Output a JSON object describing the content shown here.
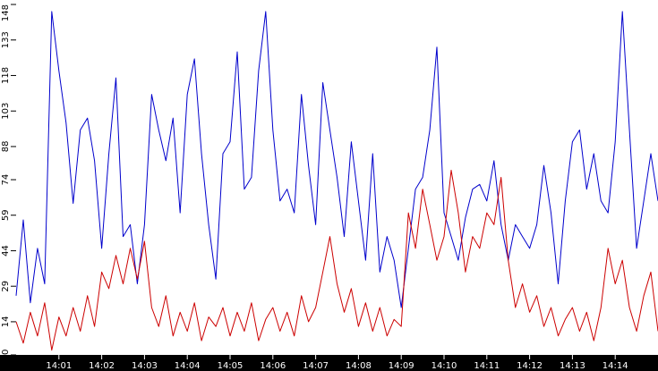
{
  "chart_data": {
    "type": "line",
    "title": "",
    "xlabel": "",
    "ylabel": "",
    "x_time_range": [
      "14:00:00",
      "14:15:00"
    ],
    "ylim": [
      0,
      148
    ],
    "yticks": [
      0,
      14,
      29,
      44,
      59,
      74,
      88,
      103,
      118,
      133,
      148
    ],
    "xticks": [
      "14:01",
      "14:02",
      "14:03",
      "14:04",
      "14:05",
      "14:06",
      "14:07",
      "14:08",
      "14:09",
      "14:10",
      "14:11",
      "14:12",
      "14:13",
      "14:14"
    ],
    "grid": false,
    "legend": "none",
    "series": [
      {
        "color": "#0000cc",
        "points": [
          [
            "14:00:00",
            25
          ],
          [
            "14:00:10",
            57
          ],
          [
            "14:00:20",
            22
          ],
          [
            "14:00:30",
            45
          ],
          [
            "14:00:40",
            30
          ],
          [
            "14:00:50",
            145
          ],
          [
            "14:01:00",
            120
          ],
          [
            "14:01:10",
            98
          ],
          [
            "14:01:20",
            64
          ],
          [
            "14:01:30",
            95
          ],
          [
            "14:01:40",
            100
          ],
          [
            "14:01:50",
            82
          ],
          [
            "14:02:00",
            45
          ],
          [
            "14:02:10",
            85
          ],
          [
            "14:02:20",
            117
          ],
          [
            "14:02:30",
            50
          ],
          [
            "14:02:40",
            55
          ],
          [
            "14:02:50",
            30
          ],
          [
            "14:03:00",
            55
          ],
          [
            "14:03:10",
            110
          ],
          [
            "14:03:20",
            95
          ],
          [
            "14:03:30",
            82
          ],
          [
            "14:03:40",
            100
          ],
          [
            "14:03:50",
            60
          ],
          [
            "14:04:00",
            110
          ],
          [
            "14:04:10",
            125
          ],
          [
            "14:04:20",
            85
          ],
          [
            "14:04:30",
            55
          ],
          [
            "14:04:40",
            32
          ],
          [
            "14:04:50",
            85
          ],
          [
            "14:05:00",
            90
          ],
          [
            "14:05:10",
            128
          ],
          [
            "14:05:20",
            70
          ],
          [
            "14:05:30",
            75
          ],
          [
            "14:05:40",
            120
          ],
          [
            "14:05:50",
            145
          ],
          [
            "14:06:00",
            95
          ],
          [
            "14:06:10",
            65
          ],
          [
            "14:06:20",
            70
          ],
          [
            "14:06:30",
            60
          ],
          [
            "14:06:40",
            110
          ],
          [
            "14:06:50",
            80
          ],
          [
            "14:07:00",
            55
          ],
          [
            "14:07:10",
            115
          ],
          [
            "14:07:20",
            95
          ],
          [
            "14:07:30",
            75
          ],
          [
            "14:07:40",
            50
          ],
          [
            "14:07:50",
            90
          ],
          [
            "14:08:00",
            65
          ],
          [
            "14:08:10",
            40
          ],
          [
            "14:08:20",
            85
          ],
          [
            "14:08:30",
            35
          ],
          [
            "14:08:40",
            50
          ],
          [
            "14:08:50",
            40
          ],
          [
            "14:09:00",
            20
          ],
          [
            "14:09:10",
            45
          ],
          [
            "14:09:20",
            70
          ],
          [
            "14:09:30",
            75
          ],
          [
            "14:09:40",
            95
          ],
          [
            "14:09:50",
            130
          ],
          [
            "14:10:00",
            60
          ],
          [
            "14:10:10",
            50
          ],
          [
            "14:10:20",
            40
          ],
          [
            "14:10:30",
            58
          ],
          [
            "14:10:40",
            70
          ],
          [
            "14:10:50",
            72
          ],
          [
            "14:11:00",
            65
          ],
          [
            "14:11:10",
            82
          ],
          [
            "14:11:20",
            55
          ],
          [
            "14:11:30",
            40
          ],
          [
            "14:11:40",
            55
          ],
          [
            "14:11:50",
            50
          ],
          [
            "14:12:00",
            45
          ],
          [
            "14:12:10",
            55
          ],
          [
            "14:12:20",
            80
          ],
          [
            "14:12:30",
            60
          ],
          [
            "14:12:40",
            30
          ],
          [
            "14:12:50",
            65
          ],
          [
            "14:13:00",
            90
          ],
          [
            "14:13:10",
            95
          ],
          [
            "14:13:20",
            70
          ],
          [
            "14:13:30",
            85
          ],
          [
            "14:13:40",
            65
          ],
          [
            "14:13:50",
            60
          ],
          [
            "14:14:00",
            90
          ],
          [
            "14:14:10",
            145
          ],
          [
            "14:14:20",
            95
          ],
          [
            "14:14:30",
            45
          ],
          [
            "14:14:40",
            65
          ],
          [
            "14:14:50",
            85
          ],
          [
            "14:15:00",
            65
          ]
        ]
      },
      {
        "color": "#cc0000",
        "points": [
          [
            "14:00:00",
            14
          ],
          [
            "14:00:10",
            5
          ],
          [
            "14:00:20",
            18
          ],
          [
            "14:00:30",
            8
          ],
          [
            "14:00:40",
            22
          ],
          [
            "14:00:50",
            2
          ],
          [
            "14:01:00",
            16
          ],
          [
            "14:01:10",
            8
          ],
          [
            "14:01:20",
            20
          ],
          [
            "14:01:30",
            10
          ],
          [
            "14:01:40",
            25
          ],
          [
            "14:01:50",
            12
          ],
          [
            "14:02:00",
            35
          ],
          [
            "14:02:10",
            28
          ],
          [
            "14:02:20",
            42
          ],
          [
            "14:02:30",
            30
          ],
          [
            "14:02:40",
            45
          ],
          [
            "14:02:50",
            32
          ],
          [
            "14:03:00",
            48
          ],
          [
            "14:03:10",
            20
          ],
          [
            "14:03:20",
            12
          ],
          [
            "14:03:30",
            25
          ],
          [
            "14:03:40",
            8
          ],
          [
            "14:03:50",
            18
          ],
          [
            "14:04:00",
            10
          ],
          [
            "14:04:10",
            22
          ],
          [
            "14:04:20",
            6
          ],
          [
            "14:04:30",
            16
          ],
          [
            "14:04:40",
            12
          ],
          [
            "14:04:50",
            20
          ],
          [
            "14:05:00",
            8
          ],
          [
            "14:05:10",
            18
          ],
          [
            "14:05:20",
            10
          ],
          [
            "14:05:30",
            22
          ],
          [
            "14:05:40",
            6
          ],
          [
            "14:05:50",
            15
          ],
          [
            "14:06:00",
            20
          ],
          [
            "14:06:10",
            10
          ],
          [
            "14:06:20",
            18
          ],
          [
            "14:06:30",
            8
          ],
          [
            "14:06:40",
            25
          ],
          [
            "14:06:50",
            14
          ],
          [
            "14:07:00",
            20
          ],
          [
            "14:07:10",
            35
          ],
          [
            "14:07:20",
            50
          ],
          [
            "14:07:30",
            30
          ],
          [
            "14:07:40",
            18
          ],
          [
            "14:07:50",
            28
          ],
          [
            "14:08:00",
            12
          ],
          [
            "14:08:10",
            22
          ],
          [
            "14:08:20",
            10
          ],
          [
            "14:08:30",
            20
          ],
          [
            "14:08:40",
            8
          ],
          [
            "14:08:50",
            15
          ],
          [
            "14:09:00",
            12
          ],
          [
            "14:09:10",
            60
          ],
          [
            "14:09:20",
            45
          ],
          [
            "14:09:30",
            70
          ],
          [
            "14:09:40",
            55
          ],
          [
            "14:09:50",
            40
          ],
          [
            "14:10:00",
            50
          ],
          [
            "14:10:10",
            78
          ],
          [
            "14:10:20",
            60
          ],
          [
            "14:10:30",
            35
          ],
          [
            "14:10:40",
            50
          ],
          [
            "14:10:50",
            45
          ],
          [
            "14:11:00",
            60
          ],
          [
            "14:11:10",
            55
          ],
          [
            "14:11:20",
            75
          ],
          [
            "14:11:30",
            40
          ],
          [
            "14:11:40",
            20
          ],
          [
            "14:11:50",
            30
          ],
          [
            "14:12:00",
            18
          ],
          [
            "14:12:10",
            25
          ],
          [
            "14:12:20",
            12
          ],
          [
            "14:12:30",
            20
          ],
          [
            "14:12:40",
            8
          ],
          [
            "14:12:50",
            15
          ],
          [
            "14:13:00",
            20
          ],
          [
            "14:13:10",
            10
          ],
          [
            "14:13:20",
            18
          ],
          [
            "14:13:30",
            6
          ],
          [
            "14:13:40",
            20
          ],
          [
            "14:13:50",
            45
          ],
          [
            "14:14:00",
            30
          ],
          [
            "14:14:10",
            40
          ],
          [
            "14:14:20",
            20
          ],
          [
            "14:14:30",
            10
          ],
          [
            "14:14:40",
            25
          ],
          [
            "14:14:50",
            35
          ],
          [
            "14:15:00",
            10
          ]
        ]
      }
    ]
  }
}
